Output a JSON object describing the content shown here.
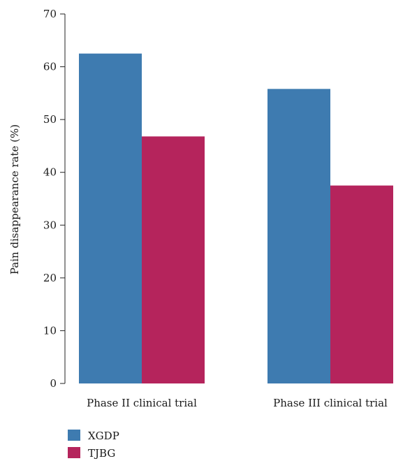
{
  "chart_data": {
    "type": "bar",
    "categories": [
      "Phase II clinical trial",
      "Phase III clinical trial"
    ],
    "series": [
      {
        "name": "XGDP",
        "values": [
          62.5,
          55.8
        ],
        "color": "#3e7bb0"
      },
      {
        "name": "TJBG",
        "values": [
          46.8,
          37.5
        ],
        "color": "#b5245c"
      }
    ],
    "ylabel": "Pain disappearance rate (%)",
    "xlabel": "",
    "ylim": [
      0,
      70
    ],
    "yticks": [
      0,
      10,
      20,
      30,
      40,
      50,
      60,
      70
    ],
    "grid": false,
    "legend_position": "bottom-left"
  }
}
